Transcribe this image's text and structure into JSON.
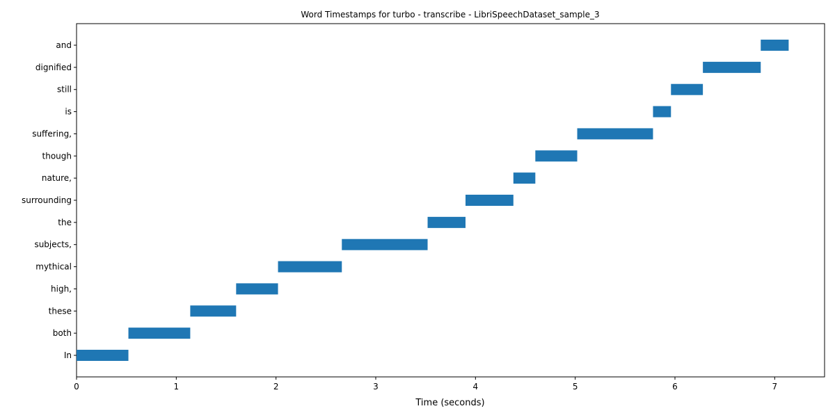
{
  "chart_data": {
    "type": "bar",
    "orientation": "horizontal-timeline",
    "title": "Word Timestamps for turbo - transcribe - LibriSpeechDataset_sample_3",
    "xlabel": "Time (seconds)",
    "ylabel": "",
    "xlim": [
      0,
      7.5
    ],
    "xticks": [
      0,
      1,
      2,
      3,
      4,
      5,
      6,
      7
    ],
    "grid": false,
    "bar_color": "#1f77b4",
    "categories": [
      " In",
      " both",
      " these",
      " high,",
      " mythical",
      " subjects,",
      " the",
      " surrounding",
      " nature,",
      " though",
      " suffering,",
      " is",
      " still",
      " dignified",
      " and"
    ],
    "series": [
      {
        "start": [
          0.0,
          0.52,
          1.14,
          1.6,
          2.02,
          2.66,
          3.52,
          3.9,
          4.38,
          4.6,
          5.02,
          5.78,
          5.96,
          6.28,
          6.86
        ],
        "end": [
          0.52,
          1.14,
          1.6,
          2.02,
          2.66,
          3.52,
          3.9,
          4.38,
          4.6,
          5.02,
          5.78,
          5.96,
          6.28,
          6.86,
          7.14
        ]
      }
    ]
  }
}
